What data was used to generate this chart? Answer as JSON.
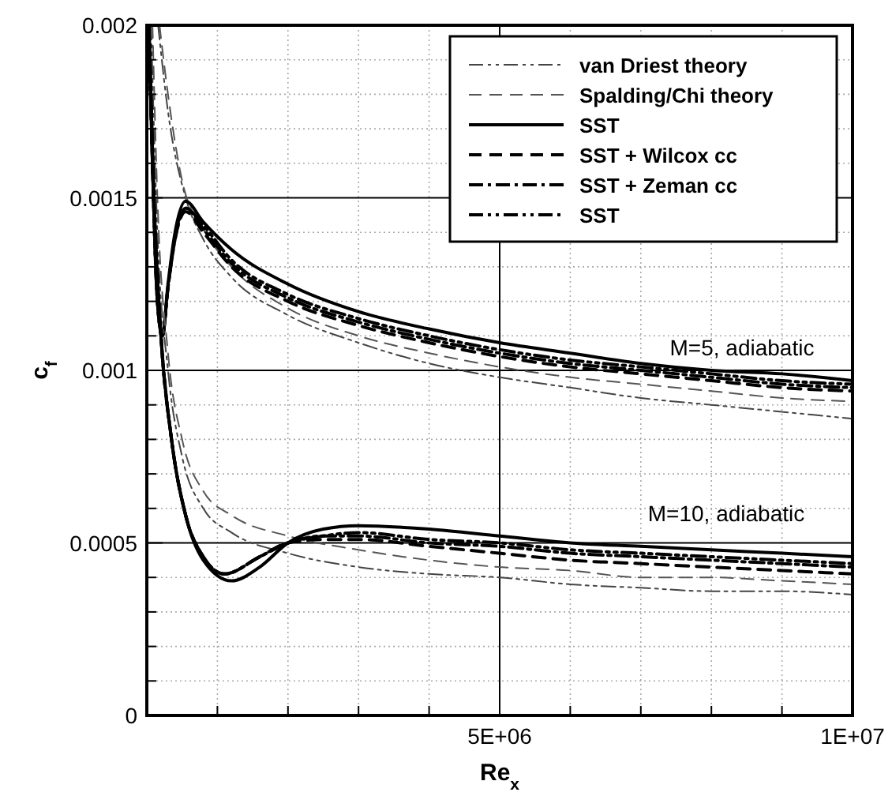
{
  "chart_data": {
    "type": "line",
    "xlabel": "Re$_{x}$",
    "ylabel": "c$_{f}$",
    "xlim": [
      0,
      10000000
    ],
    "ylim": [
      0,
      0.002
    ],
    "xticks": [
      {
        "value": 0,
        "label": null
      },
      {
        "value": 1000000,
        "label": null
      },
      {
        "value": 2000000,
        "label": null
      },
      {
        "value": 3000000,
        "label": null
      },
      {
        "value": 4000000,
        "label": null
      },
      {
        "value": 5000000,
        "label": "5E+06"
      },
      {
        "value": 6000000,
        "label": null
      },
      {
        "value": 7000000,
        "label": null
      },
      {
        "value": 8000000,
        "label": null
      },
      {
        "value": 9000000,
        "label": null
      },
      {
        "value": 10000000,
        "label": "1E+07"
      }
    ],
    "yticks": [
      0,
      {
        "value": 0.0001,
        "label": null
      },
      {
        "value": 0.0002,
        "label": null
      },
      {
        "value": 0.0003,
        "label": null
      },
      {
        "value": 0.0004,
        "label": null
      },
      0.0005,
      {
        "value": 0.0006,
        "label": null
      },
      {
        "value": 0.0007,
        "label": null
      },
      {
        "value": 0.0008,
        "label": null
      },
      {
        "value": 0.0009,
        "label": null
      },
      0.001,
      {
        "value": 0.0011,
        "label": null
      },
      {
        "value": 0.0012,
        "label": null
      },
      {
        "value": 0.0013,
        "label": null
      },
      {
        "value": 0.0014,
        "label": null
      },
      0.0015,
      {
        "value": 0.0016,
        "label": null
      },
      {
        "value": 0.0017,
        "label": null
      },
      {
        "value": 0.0018,
        "label": null
      },
      {
        "value": 0.0019,
        "label": null
      },
      0.002
    ],
    "grid": true,
    "legend": "top right",
    "marker": "none",
    "annotations": [
      "M=5, adiabatic",
      "M=10, adiabatic"
    ],
    "series": [
      {
        "name": "van Driest theory",
        "color": "#444444",
        "line_style": "dashdotdot",
        "x": [
          160000,
          300000,
          550000,
          800000,
          1200000,
          2000000,
          3000000,
          4000000,
          5000000,
          6000000,
          7000000,
          8000000,
          9000000,
          10000000
        ],
        "values": [
          0.002,
          0.00175,
          0.0015,
          0.00138,
          0.00127,
          0.00116,
          0.00108,
          0.00102,
          0.00098,
          0.00095,
          0.00092,
          0.0009,
          0.00088,
          0.00086
        ]
      },
      {
        "name": "Spalding/Chi theory",
        "color": "#555555",
        "line_style": "dashed",
        "x": [
          180000,
          300000,
          500000,
          800000,
          1200000,
          2000000,
          3000000,
          4000000,
          5000000,
          6000000,
          7000000,
          8000000,
          9000000,
          10000000
        ],
        "values": [
          0.002,
          0.0018,
          0.00155,
          0.00141,
          0.0013,
          0.00118,
          0.0011,
          0.00105,
          0.00101,
          0.00098,
          0.00096,
          0.00094,
          0.00092,
          0.00091
        ]
      },
      {
        "name": "SST",
        "color": "#000000",
        "line_style": "solid",
        "x": [
          30000,
          80000,
          150000,
          220000,
          300000,
          400000,
          550000,
          800000,
          1200000,
          2000000,
          3000000,
          4000000,
          5000000,
          6000000,
          7000000,
          8000000,
          9000000,
          10000000
        ],
        "values": [
          0.002,
          0.0016,
          0.0012,
          0.0011,
          0.00125,
          0.0014,
          0.00149,
          0.00143,
          0.00135,
          0.00125,
          0.00117,
          0.00112,
          0.00108,
          0.00105,
          0.00102,
          0.001,
          0.00099,
          0.00097
        ]
      },
      {
        "name": "SST + Wilcox cc",
        "color": "#000000",
        "line_style": "dashed",
        "x": [
          30000,
          80000,
          150000,
          220000,
          300000,
          400000,
          550000,
          800000,
          1200000,
          2000000,
          3000000,
          4000000,
          5000000,
          6000000,
          7000000,
          8000000,
          9000000,
          10000000
        ],
        "values": [
          0.002,
          0.0016,
          0.0012,
          0.0011,
          0.00124,
          0.00138,
          0.00146,
          0.0014,
          0.0013,
          0.0012,
          0.00113,
          0.00108,
          0.00104,
          0.00101,
          0.00099,
          0.00097,
          0.00095,
          0.00094
        ]
      },
      {
        "name": "SST + Zeman cc",
        "color": "#000000",
        "line_style": "dashdot",
        "x": [
          30000,
          80000,
          150000,
          220000,
          300000,
          400000,
          550000,
          800000,
          1200000,
          2000000,
          3000000,
          4000000,
          5000000,
          6000000,
          7000000,
          8000000,
          9000000,
          10000000
        ],
        "values": [
          0.002,
          0.0016,
          0.0012,
          0.0011,
          0.00124,
          0.00138,
          0.00147,
          0.00141,
          0.00131,
          0.00121,
          0.00114,
          0.00109,
          0.00105,
          0.00102,
          0.001,
          0.00098,
          0.00096,
          0.00095
        ]
      },
      {
        "name": "SST",
        "color": "#000000",
        "line_style": "dashdotdot",
        "x": [
          30000,
          80000,
          150000,
          220000,
          300000,
          400000,
          550000,
          800000,
          1200000,
          2000000,
          3000000,
          4000000,
          5000000,
          6000000,
          7000000,
          8000000,
          9000000,
          10000000
        ],
        "values": [
          0.002,
          0.0016,
          0.0012,
          0.0011,
          0.00124,
          0.00139,
          0.00147,
          0.00142,
          0.00132,
          0.00122,
          0.00115,
          0.0011,
          0.00106,
          0.00103,
          0.00101,
          0.00099,
          0.00097,
          0.00096
        ]
      },
      {
        "color": "#444444",
        "line_style": "dashdotdot",
        "x": [
          60000,
          150000,
          300000,
          500000,
          800000,
          1200000,
          2000000,
          3000000,
          4000000,
          5000000,
          6000000,
          7000000,
          8000000,
          9000000,
          10000000
        ],
        "values": [
          0.002,
          0.0014,
          0.001,
          0.00075,
          0.0006,
          0.00053,
          0.00047,
          0.00043,
          0.00041,
          0.0004,
          0.00038,
          0.00037,
          0.00036,
          0.00036,
          0.00035
        ]
      },
      {
        "color": "#555555",
        "line_style": "dashed",
        "x": [
          80000,
          150000,
          300000,
          500000,
          800000,
          1200000,
          2000000,
          3000000,
          4000000,
          5000000,
          6000000,
          7000000,
          8000000,
          9000000,
          10000000
        ],
        "values": [
          0.002,
          0.0015,
          0.00105,
          0.0008,
          0.00065,
          0.00058,
          0.00052,
          0.00048,
          0.00045,
          0.00043,
          0.00042,
          0.0004,
          0.0004,
          0.00039,
          0.00038
        ]
      },
      {
        "color": "#000000",
        "line_style": "solid",
        "x": [
          30000,
          100000,
          200000,
          350000,
          550000,
          800000,
          1200000,
          1600000,
          2000000,
          2500000,
          3000000,
          4000000,
          5000000,
          6000000,
          7000000,
          8000000,
          9000000,
          10000000
        ],
        "values": [
          0.002,
          0.0015,
          0.0011,
          0.0008,
          0.00058,
          0.00045,
          0.00039,
          0.00043,
          0.0005,
          0.00054,
          0.00055,
          0.00054,
          0.00052,
          0.0005,
          0.00049,
          0.00048,
          0.00047,
          0.00046
        ]
      },
      {
        "color": "#000000",
        "line_style": "dashed",
        "x": [
          30000,
          100000,
          200000,
          350000,
          550000,
          800000,
          1100000,
          1600000,
          2000000,
          2500000,
          3000000,
          4000000,
          5000000,
          6000000,
          7000000,
          8000000,
          9000000,
          10000000
        ],
        "values": [
          0.002,
          0.0015,
          0.0011,
          0.0008,
          0.00058,
          0.00046,
          0.00041,
          0.00046,
          0.0005,
          0.00051,
          0.00051,
          0.00049,
          0.00047,
          0.00045,
          0.00044,
          0.00043,
          0.00042,
          0.00041
        ]
      },
      {
        "color": "#000000",
        "line_style": "dashdot",
        "x": [
          30000,
          100000,
          200000,
          350000,
          550000,
          800000,
          1100000,
          1600000,
          2000000,
          2500000,
          3000000,
          4000000,
          5000000,
          6000000,
          7000000,
          8000000,
          9000000,
          10000000
        ],
        "values": [
          0.002,
          0.0015,
          0.0011,
          0.0008,
          0.00058,
          0.00046,
          0.00041,
          0.00046,
          0.0005,
          0.00052,
          0.00052,
          0.0005,
          0.00049,
          0.00047,
          0.00046,
          0.00045,
          0.00044,
          0.00043
        ]
      },
      {
        "color": "#000000",
        "line_style": "dashdotdot",
        "x": [
          30000,
          100000,
          200000,
          350000,
          550000,
          800000,
          1100000,
          1600000,
          2000000,
          2500000,
          3000000,
          4000000,
          5000000,
          6000000,
          7000000,
          8000000,
          9000000,
          10000000
        ],
        "values": [
          0.002,
          0.0015,
          0.0011,
          0.0008,
          0.00058,
          0.00046,
          0.00041,
          0.00046,
          0.0005,
          0.00052,
          0.00053,
          0.00051,
          0.0005,
          0.00048,
          0.00047,
          0.00046,
          0.00045,
          0.00044
        ]
      }
    ]
  }
}
